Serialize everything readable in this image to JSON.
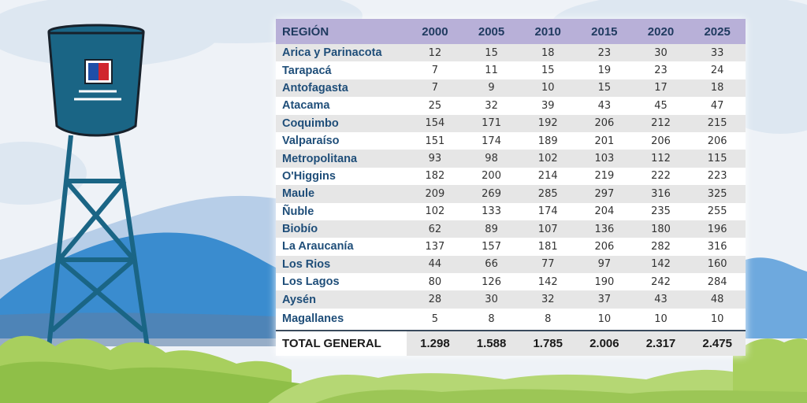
{
  "colors": {
    "header_bg": "#b8b0d8",
    "region_text": "#1f4e79",
    "tower": "#1a6585",
    "hill": "#3a8ccf",
    "grass": "#a8cf5e"
  },
  "icons": [
    "water-tower-icon",
    "flag-icon"
  ],
  "chart_data": {
    "type": "table",
    "title": "",
    "columns": [
      "REGIÓN",
      "2000",
      "2005",
      "2010",
      "2015",
      "2020",
      "2025"
    ],
    "rows": [
      {
        "region": "Arica y Parinacota",
        "values": [
          "12",
          "15",
          "18",
          "23",
          "30",
          "33"
        ]
      },
      {
        "region": "Tarapacá",
        "values": [
          "7",
          "11",
          "15",
          "19",
          "23",
          "24"
        ]
      },
      {
        "region": "Antofagasta",
        "values": [
          "7",
          "9",
          "10",
          "15",
          "17",
          "18"
        ]
      },
      {
        "region": "Atacama",
        "values": [
          "25",
          "32",
          "39",
          "43",
          "45",
          "47"
        ]
      },
      {
        "region": "Coquimbo",
        "values": [
          "154",
          "171",
          "192",
          "206",
          "212",
          "215"
        ]
      },
      {
        "region": "Valparaíso",
        "values": [
          "151",
          "174",
          "189",
          "201",
          "206",
          "206"
        ]
      },
      {
        "region": "Metropolitana",
        "values": [
          "93",
          "98",
          "102",
          "103",
          "112",
          "115"
        ]
      },
      {
        "region": "O'Higgins",
        "values": [
          "182",
          "200",
          "214",
          "219",
          "222",
          "223"
        ]
      },
      {
        "region": "Maule",
        "values": [
          "209",
          "269",
          "285",
          "297",
          "316",
          "325"
        ]
      },
      {
        "region": "Ñuble",
        "values": [
          "102",
          "133",
          "174",
          "204",
          "235",
          "255"
        ]
      },
      {
        "region": "Biobío",
        "values": [
          "62",
          "89",
          "107",
          "136",
          "180",
          "196"
        ]
      },
      {
        "region": "La Araucanía",
        "values": [
          "137",
          "157",
          "181",
          "206",
          "282",
          "316"
        ]
      },
      {
        "region": "Los Rios",
        "values": [
          "44",
          "66",
          "77",
          "97",
          "142",
          "160"
        ]
      },
      {
        "region": "Los Lagos",
        "values": [
          "80",
          "126",
          "142",
          "190",
          "242",
          "284"
        ]
      },
      {
        "region": "Aysén",
        "values": [
          "28",
          "30",
          "32",
          "37",
          "43",
          "48"
        ]
      },
      {
        "region": "Magallanes",
        "values": [
          "5",
          "8",
          "8",
          "10",
          "10",
          "10"
        ]
      }
    ],
    "total": {
      "label": "TOTAL GENERAL",
      "values": [
        "1.298",
        "1.588",
        "1.785",
        "2.006",
        "2.317",
        "2.475"
      ]
    }
  }
}
